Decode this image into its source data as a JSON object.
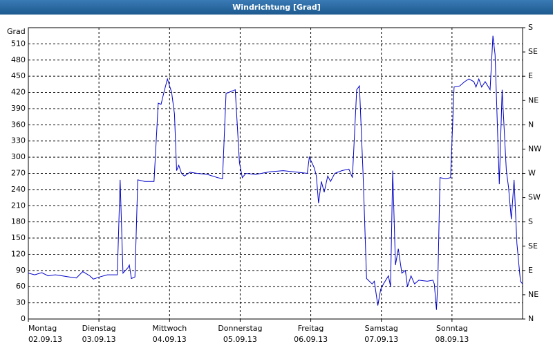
{
  "chart_data": {
    "type": "line",
    "title": "Windrichtung [Grad]",
    "y_label": "Grad",
    "xlim": [
      0,
      7
    ],
    "xticks": [
      {
        "value": 0,
        "label": "Montag",
        "date": "02.09.13"
      },
      {
        "value": 1,
        "label": "Dienstag",
        "date": "03.09.13"
      },
      {
        "value": 2,
        "label": "Mittwoch",
        "date": "04.09.13"
      },
      {
        "value": 3,
        "label": "Donnerstag",
        "date": "05.09.13"
      },
      {
        "value": 4,
        "label": "Freitag",
        "date": "06.09.13"
      },
      {
        "value": 5,
        "label": "Samstag",
        "date": "07.09.13"
      },
      {
        "value": 6,
        "label": "Sonntag",
        "date": "08.09.13"
      }
    ],
    "ylim": [
      0,
      540
    ],
    "yticks": [
      0,
      30,
      60,
      90,
      120,
      150,
      180,
      210,
      240,
      270,
      300,
      330,
      360,
      390,
      420,
      450,
      480,
      510
    ],
    "y2lim": [
      0,
      540
    ],
    "y2ticks": [
      {
        "value": 0,
        "label": "N"
      },
      {
        "value": 45,
        "label": "NE"
      },
      {
        "value": 90,
        "label": "E"
      },
      {
        "value": 135,
        "label": "SE"
      },
      {
        "value": 180,
        "label": "S"
      },
      {
        "value": 225,
        "label": "SW"
      },
      {
        "value": 270,
        "label": "W"
      },
      {
        "value": 315,
        "label": "NW"
      },
      {
        "value": 360,
        "label": "N"
      },
      {
        "value": 405,
        "label": "NE"
      },
      {
        "value": 450,
        "label": "E"
      },
      {
        "value": 495,
        "label": "SE"
      },
      {
        "value": 540,
        "label": "S"
      }
    ],
    "grid": true,
    "x": [
      0,
      0.09,
      0.19,
      0.28,
      0.38,
      0.48,
      0.58,
      0.68,
      0.77,
      0.87,
      0.92,
      1.01,
      1.12,
      1.26,
      1.3,
      1.34,
      1.41,
      1.43,
      1.46,
      1.51,
      1.55,
      1.65,
      1.78,
      1.84,
      1.88,
      1.92,
      1.97,
      2.03,
      2.07,
      2.1,
      2.13,
      2.17,
      2.21,
      2.29,
      2.39,
      2.54,
      2.68,
      2.75,
      2.8,
      2.93,
      2.99,
      3.03,
      3.08,
      3.22,
      3.42,
      3.61,
      3.81,
      3.95,
      3.98,
      4.05,
      4.08,
      4.11,
      4.15,
      4.19,
      4.24,
      4.28,
      4.34,
      4.44,
      4.54,
      4.59,
      4.65,
      4.69,
      4.74,
      4.79,
      4.87,
      4.9,
      4.95,
      4.99,
      5.03,
      5.1,
      5.13,
      5.16,
      5.2,
      5.24,
      5.29,
      5.34,
      5.37,
      5.42,
      5.47,
      5.53,
      5.65,
      5.73,
      5.75,
      5.78,
      5.8,
      5.83,
      5.91,
      5.98,
      6.03,
      6.11,
      6.18,
      6.24,
      6.31,
      6.34,
      6.38,
      6.42,
      6.47,
      6.54,
      6.58,
      6.61,
      6.67,
      6.71,
      6.77,
      6.8,
      6.84,
      6.88,
      6.92,
      6.97,
      7.0
    ],
    "series": [
      {
        "name": "Windrichtung",
        "color": "#0000c8",
        "values": [
          85,
          82,
          86,
          80,
          82,
          80,
          78,
          76,
          88,
          80,
          74,
          78,
          82,
          82,
          258,
          85,
          95,
          100,
          75,
          78,
          258,
          255,
          255,
          400,
          398,
          420,
          445,
          420,
          380,
          275,
          285,
          270,
          265,
          272,
          270,
          268,
          262,
          260,
          418,
          425,
          290,
          262,
          270,
          268,
          273,
          275,
          272,
          270,
          300,
          280,
          265,
          215,
          255,
          235,
          265,
          255,
          270,
          275,
          278,
          262,
          425,
          432,
          270,
          75,
          65,
          70,
          25,
          55,
          65,
          80,
          60,
          275,
          100,
          130,
          85,
          90,
          60,
          80,
          65,
          72,
          70,
          72,
          65,
          17,
          70,
          262,
          260,
          262,
          430,
          432,
          440,
          445,
          440,
          430,
          445,
          430,
          440,
          425,
          525,
          490,
          250,
          425,
          275,
          245,
          185,
          258,
          140,
          70,
          65
        ]
      }
    ]
  }
}
